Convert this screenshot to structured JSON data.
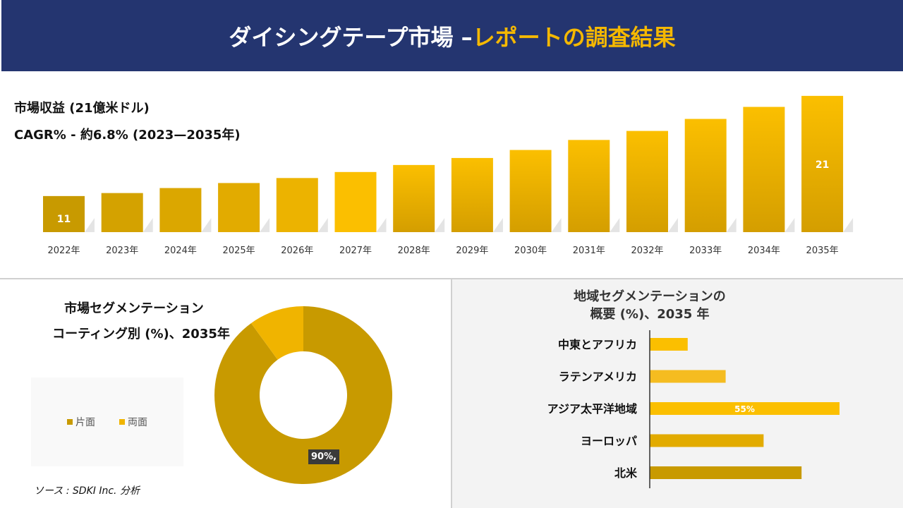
{
  "header": {
    "title_main": "ダイシングテープ市場 –",
    "title_accent": "レポートの調査結果"
  },
  "colors": {
    "header_bg": "#243570",
    "accent": "#f5b800",
    "bar_dark": "#c89a00",
    "bar_light": "#fbbf00",
    "donut_main": "#c89a00",
    "donut_minor": "#f0b400"
  },
  "chart_data": [
    {
      "type": "bar",
      "title": "市場収益 (21億米ドル)",
      "subtitle": "CAGR% - 約6.8% (2023—2035年)",
      "categories": [
        "2022年",
        "2023年",
        "2024年",
        "2025年",
        "2026年",
        "2027年",
        "2028年",
        "2029年",
        "2030年",
        "2031年",
        "2032年",
        "2033年",
        "2034年",
        "2035年"
      ],
      "values": [
        11,
        11.3,
        11.8,
        12.3,
        12.8,
        13.4,
        14.1,
        14.8,
        15.6,
        16.6,
        17.5,
        18.7,
        19.9,
        21
      ],
      "data_labels": {
        "0": "11",
        "13": "21"
      }
    },
    {
      "type": "pie",
      "donut": true,
      "title_line1": "市場セグメンテーション",
      "title_line2": "コーティング別 (%)、2035年",
      "labels": [
        "片面",
        "両面"
      ],
      "values": [
        90,
        10
      ],
      "data_label": "90%,"
    },
    {
      "type": "bar",
      "orientation": "horizontal",
      "title_line1": "地域セグメンテーションの",
      "title_line2": "概要 (%)、2035 年",
      "categories": [
        "中東とアフリカ",
        "ラテンアメリカ",
        "アジア太平洋地域",
        "ヨーロッパ",
        "北米"
      ],
      "values": [
        11,
        22,
        55,
        33,
        44
      ],
      "data_label": "55%"
    }
  ],
  "source": "ソース : SDKI Inc. 分析"
}
